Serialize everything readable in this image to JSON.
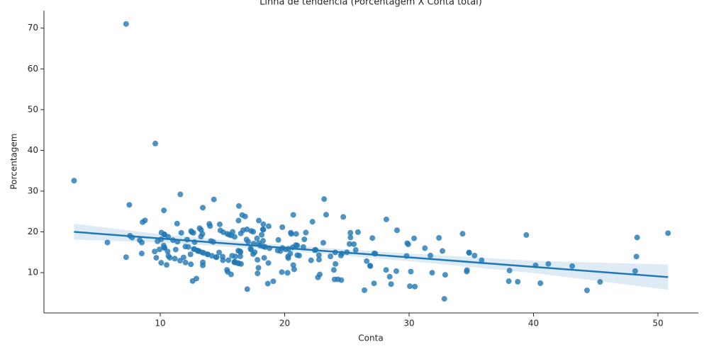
{
  "chart_data": {
    "type": "scatter",
    "title": "Linha de tendência (Porcentagem X Conta total)",
    "xlabel": "Conta",
    "ylabel": "Porcentagem",
    "color": "#1f77b4",
    "xlim": [
      0.65,
      53.25
    ],
    "ylim": [
      0.1,
      74.3
    ],
    "xticks": [
      10,
      20,
      30,
      40,
      50
    ],
    "yticks": [
      10,
      20,
      30,
      40,
      50,
      60,
      70
    ],
    "grid": false,
    "x": [
      16.99,
      10.34,
      21.01,
      23.68,
      24.59,
      25.29,
      8.77,
      26.88,
      15.04,
      14.78,
      10.27,
      35.26,
      15.42,
      18.43,
      14.83,
      21.58,
      10.33,
      16.29,
      16.97,
      20.65,
      17.92,
      20.29,
      15.77,
      39.42,
      19.82,
      17.81,
      13.37,
      12.69,
      21.7,
      19.65,
      9.55,
      18.35,
      15.06,
      20.69,
      17.78,
      24.06,
      16.31,
      16.93,
      18.69,
      31.27,
      16.04,
      17.46,
      13.94,
      9.68,
      30.4,
      18.29,
      22.23,
      32.4,
      28.55,
      18.04,
      12.54,
      10.29,
      34.81,
      9.94,
      25.56,
      19.49,
      38.01,
      26.41,
      11.24,
      48.27,
      20.29,
      13.81,
      11.02,
      18.29,
      17.59,
      20.08,
      16.45,
      3.07,
      20.23,
      15.01,
      12.02,
      17.07,
      26.86,
      25.28,
      14.73,
      10.51,
      17.92,
      27.2,
      22.76,
      17.29,
      19.44,
      16.66,
      10.07,
      32.68,
      15.98,
      34.83,
      13.03,
      18.28,
      24.71,
      21.16,
      28.97,
      22.49,
      5.75,
      16.32,
      22.75,
      40.17,
      27.28,
      12.03,
      21.01,
      12.46,
      11.35,
      15.38,
      44.3,
      22.42,
      20.92,
      15.36,
      20.49,
      25.21,
      18.24,
      14.31,
      14,
      7.25,
      38.07,
      23.95,
      25.71,
      17.31,
      29.93,
      10.65,
      12.43,
      24.08,
      11.69,
      13.42,
      14.26,
      15.95,
      12.48,
      29.8,
      8.52,
      14.52,
      11.38,
      22.82,
      19.08,
      20.27,
      11.17,
      12.26,
      18.26,
      8.51,
      10.33,
      14.15,
      16,
      13.16,
      17.47,
      34.3,
      41.19,
      27.05,
      16.43,
      8.35,
      18.64,
      11.87,
      9.78,
      7.51,
      14.07,
      13.13,
      17.26,
      24.55,
      19.77,
      29.85,
      48.17,
      25,
      13.39,
      16.49,
      21.5,
      12.66,
      16.21,
      13.81,
      17.51,
      24.52,
      20.76,
      31.71,
      10.59,
      10.63,
      50.81,
      15.81,
      7.25,
      31.85,
      16.82,
      32.9,
      17.89,
      14.48,
      9.6,
      34.63,
      34.65,
      23.33,
      45.35,
      23.17,
      40.55,
      20.69,
      20.9,
      30.46,
      18.15,
      23.1,
      15.69,
      19.81,
      28.44,
      15.48,
      16.58,
      7.56,
      10.34,
      43.11,
      13,
      13.51,
      18.71,
      12.74,
      13,
      16.4,
      20.53,
      16.47,
      26.59,
      38.73,
      24.27,
      12.76,
      30.06,
      25.89,
      48.33,
      13.27,
      28.17,
      12.9,
      28.15,
      11.59,
      7.74,
      30.14,
      12.16,
      13.42,
      8.58,
      15.98,
      13.42,
      16.27,
      10.09,
      20.45,
      13.28,
      22.12,
      24.01,
      15.69,
      11.61,
      10.77,
      15.53,
      10.07,
      12.6,
      32.83,
      35.83,
      29.03,
      27.18,
      22.67,
      17.82,
      18.78
    ],
    "values": [
      5.94,
      16.05,
      16.66,
      13.98,
      14.68,
      18.62,
      22.8,
      11.61,
      13.03,
      21.85,
      16.65,
      14.18,
      10.18,
      16.28,
      20.36,
      18.16,
      16.17,
      22.77,
      20.62,
      16.22,
      22.77,
      13.55,
      14.14,
      19.23,
      16.04,
      13.14,
      14.96,
      15.76,
      19.82,
      15.27,
      15.18,
      13.62,
      19.92,
      11.84,
      18.39,
      14.96,
      12.26,
      18.13,
      12.36,
      15.99,
      13.97,
      14.55,
      21.95,
      13.64,
      18.42,
      16.4,
      22.49,
      18.52,
      7.18,
      16.63,
      19.94,
      25.27,
      14.94,
      15.69,
      16.98,
      18.01,
      7.89,
      5.68,
      15.66,
      13.94,
      15.82,
      14.48,
      17.97,
      20.56,
      15.01,
      15.69,
      15.02,
      32.57,
      9.94,
      13.92,
      16.39,
      17.57,
      11.69,
      19.78,
      14.94,
      11.89,
      17.19,
      14.71,
      13.18,
      15.67,
      15.43,
      20.41,
      18.17,
      15.3,
      12.7,
      14.84,
      15.35,
      21.88,
      23.67,
      14.18,
      10.36,
      15.56,
      17.39,
      26.35,
      14.29,
      11.77,
      14.66,
      12.47,
      14.28,
      12.04,
      22.03,
      19.51,
      5.64,
      15.52,
      19.5,
      10.68,
      19.81,
      17.02,
      20.61,
      27.95,
      21.43,
      13.79,
      10.51,
      10.65,
      15.56,
      20.22,
      16.94,
      14.08,
      14.48,
      12.13,
      19.76,
      12.52,
      17.53,
      12.54,
      20.19,
      14.09,
      17.37,
      13.77,
      17.57,
      9.55,
      7.86,
      13.96,
      13.43,
      16.31,
      17.8,
      14.69,
      19.36,
      14.13,
      12.5,
      20.9,
      20.03,
      19.53,
      12.14,
      18.48,
      14,
      17.96,
      7.3,
      13.73,
      17.69,
      26.63,
      17.77,
      15.23,
      15.87,
      8.15,
      10.12,
      17.22,
      10.38,
      15,
      19.49,
      12.13,
      16.28,
      19.75,
      12.34,
      14.48,
      17.13,
      14.19,
      10.79,
      14.19,
      15.2,
      18.81,
      19.68,
      19.99,
      71.03,
      9.98,
      23.78,
      9.45,
      11.18,
      13.81,
      41.67,
      10.25,
      10.62,
      24.22,
      7.72,
      28.05,
      7.4,
      24.17,
      16.75,
      6.57,
      19.28,
      17.32,
      9.56,
      21.15,
      9,
      13.05,
      24.13,
      19.05,
      19.34,
      11.6,
      15.38,
      14.8,
      21.38,
      15.78,
      15.38,
      15.24,
      19.48,
      19.61,
      12.82,
      7.75,
      8.36,
      17.48,
      6.65,
      19.93,
      18.62,
      18.84,
      23.07,
      8.53,
      10.66,
      12.94,
      18.6,
      10.25,
      18.09,
      25.93,
      22.38,
      18.77,
      11.77,
      15.37,
      19.82,
      14.67,
      20.48,
      13.02,
      8.33,
      19.12,
      29.2,
      13.65,
      19.32,
      12.41,
      7.94,
      3.56,
      13.03,
      20.39,
      7.36,
      8.82,
      9.82,
      15.97
    ],
    "trend": {
      "color": "#1f77b4",
      "x": [
        3.07,
        50.81
      ],
      "values": [
        20.0,
        8.9
      ]
    },
    "ci": {
      "color": "#1f77b4",
      "x": [
        3.07,
        10,
        20,
        30,
        40,
        50.81
      ],
      "lower": [
        18.1,
        17.4,
        15.4,
        12.8,
        9.9,
        5.8
      ],
      "upper": [
        22.0,
        19.4,
        16.7,
        14.7,
        12.9,
        12.0
      ]
    }
  }
}
